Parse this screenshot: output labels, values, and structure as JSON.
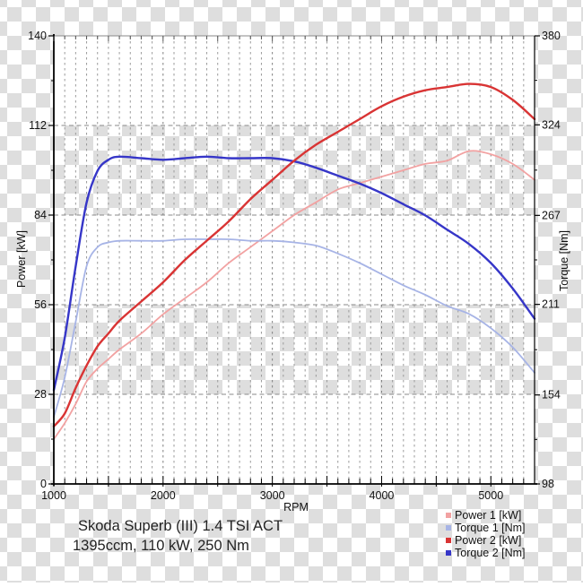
{
  "colors": {
    "checker_gray": "#dedede",
    "band_white": "#ffffff",
    "grid_minor": "#9a9a9a",
    "grid_major": "#7f7f7f",
    "grid_horizontal": "#8a8a8a",
    "axis_line": "#000000",
    "top_border": "#8a8a8a",
    "tick_text": "#111111"
  },
  "annotation": {
    "line1": "Skoda Superb (III) 1.4 TSI ACT",
    "line2": "1395ccm, 110 kW, 250 Nm"
  },
  "legend": {
    "items": [
      {
        "label": "Power 1 [kW]",
        "color": "#f2a2a2"
      },
      {
        "label": "Torque 1 [Nm]",
        "color": "#a7b4e6"
      },
      {
        "label": "Power 2 [kW]",
        "color": "#d93434"
      },
      {
        "label": "Torque 2 [Nm]",
        "color": "#3636c8"
      }
    ]
  },
  "chart_data": {
    "type": "line",
    "title": "",
    "xlabel": "RPM",
    "ylabel_left": "Power [kW]",
    "ylabel_right": "Torque [Nm]",
    "x_range": [
      1000,
      5400
    ],
    "y_left_range": [
      0,
      140
    ],
    "y_right_range": [
      98,
      380
    ],
    "x_major_ticks": [
      1000,
      2000,
      3000,
      4000,
      5000
    ],
    "x_minor_step": 100,
    "y_left_ticks": [
      0,
      28,
      56,
      84,
      112,
      140
    ],
    "y_right_ticks": [
      98,
      154,
      211,
      267,
      324,
      380
    ],
    "white_bands_left_axis": [
      [
        112,
        140
      ],
      [
        56,
        84
      ],
      [
        0,
        28
      ]
    ],
    "grid": "dashed vertical every 100 RPM; dashed horizontal at 28/56/84/112 kW; bands between alternate gridlines transparent (checkerboard shows through)",
    "legend_position": "bottom-right, outside plot",
    "rpm": [
      1000,
      1100,
      1200,
      1300,
      1400,
      1500,
      1600,
      1800,
      2000,
      2200,
      2400,
      2600,
      2800,
      3000,
      3200,
      3400,
      3600,
      3800,
      4000,
      4200,
      4400,
      4600,
      4800,
      5000,
      5200,
      5400
    ],
    "series": [
      {
        "name": "Power 1 [kW]",
        "axis": "left",
        "color": "#f2a2a2",
        "width": 1.8,
        "values": [
          14,
          19,
          25,
          32,
          36,
          39,
          42,
          47,
          53,
          58,
          63,
          69,
          74,
          79,
          84,
          88,
          92,
          94,
          96,
          98,
          100,
          101,
          104,
          103,
          100,
          95
        ]
      },
      {
        "name": "Torque 1 [Nm]",
        "axis": "right",
        "color": "#a7b4e6",
        "width": 1.8,
        "values": [
          140,
          165,
          200,
          235,
          247,
          250,
          251,
          251,
          251,
          252,
          252,
          252,
          251,
          251,
          250,
          248,
          243,
          237,
          230,
          223,
          217,
          210,
          205,
          196,
          184,
          168
        ]
      },
      {
        "name": "Torque 2 [Nm]",
        "axis": "right",
        "color": "#3636c8",
        "width": 2.4,
        "values": [
          157,
          190,
          235,
          275,
          295,
          302,
          304,
          303,
          302,
          303,
          304,
          303,
          303,
          303,
          301,
          297,
          292,
          287,
          281,
          274,
          267,
          258,
          249,
          237,
          221,
          202
        ]
      },
      {
        "name": "Power 2 [kW]",
        "axis": "left",
        "color": "#d93434",
        "width": 2.4,
        "values": [
          18,
          22,
          30,
          37,
          43,
          47,
          51,
          57,
          63,
          70,
          76,
          82,
          89,
          95,
          101,
          106,
          110,
          114,
          118,
          121,
          123,
          124,
          125,
          124,
          120,
          114
        ]
      }
    ]
  }
}
